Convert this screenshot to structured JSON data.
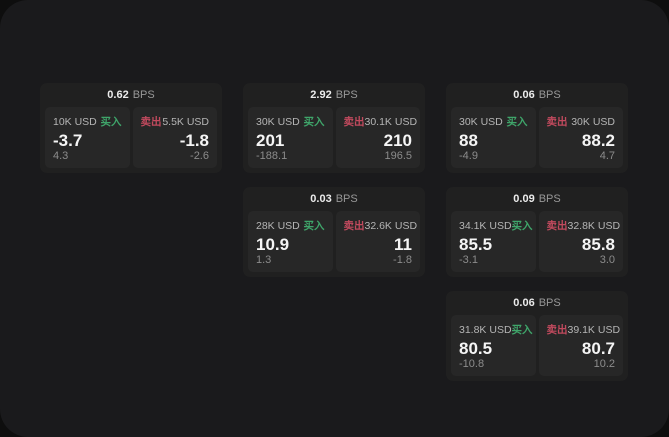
{
  "labels": {
    "bps_unit": "BPS",
    "buy": "买入",
    "sell": "卖出"
  },
  "colors": {
    "outer_background": "#0e0e0e",
    "window_background": "#1a1a1c",
    "card_background": "#202020",
    "panel_background": "#272727",
    "buy": "#3fa56a",
    "sell": "#c24a5e",
    "value_text": "#f5f5f5",
    "muted_text": "#8c8c8c"
  },
  "cards": [
    {
      "row": 1,
      "col": 1,
      "bps": "0.62",
      "buy_amount": "10K USD",
      "buy_value": "-3.7",
      "buy_sub": "4.3",
      "sell_amount": "5.5K USD",
      "sell_value": "-1.8",
      "sell_sub": "-2.6"
    },
    {
      "row": 1,
      "col": 2,
      "bps": "2.92",
      "buy_amount": "30K USD",
      "buy_value": "201",
      "buy_sub": "-188.1",
      "sell_amount": "30.1K USD",
      "sell_value": "210",
      "sell_sub": "196.5"
    },
    {
      "row": 1,
      "col": 3,
      "bps": "0.06",
      "buy_amount": "30K USD",
      "buy_value": "88",
      "buy_sub": "-4.9",
      "sell_amount": "30K USD",
      "sell_value": "88.2",
      "sell_sub": "4.7"
    },
    {
      "row": 2,
      "col": 2,
      "bps": "0.03",
      "buy_amount": "28K USD",
      "buy_value": "10.9",
      "buy_sub": "1.3",
      "sell_amount": "32.6K USD",
      "sell_value": "11",
      "sell_sub": "-1.8"
    },
    {
      "row": 2,
      "col": 3,
      "bps": "0.09",
      "buy_amount": "34.1K USD",
      "buy_value": "85.5",
      "buy_sub": "-3.1",
      "sell_amount": "32.8K USD",
      "sell_value": "85.8",
      "sell_sub": "3.0"
    },
    {
      "row": 3,
      "col": 3,
      "bps": "0.06",
      "buy_amount": "31.8K USD",
      "buy_value": "80.5",
      "buy_sub": "-10.8",
      "sell_amount": "39.1K USD",
      "sell_value": "80.7",
      "sell_sub": "10.2"
    }
  ]
}
